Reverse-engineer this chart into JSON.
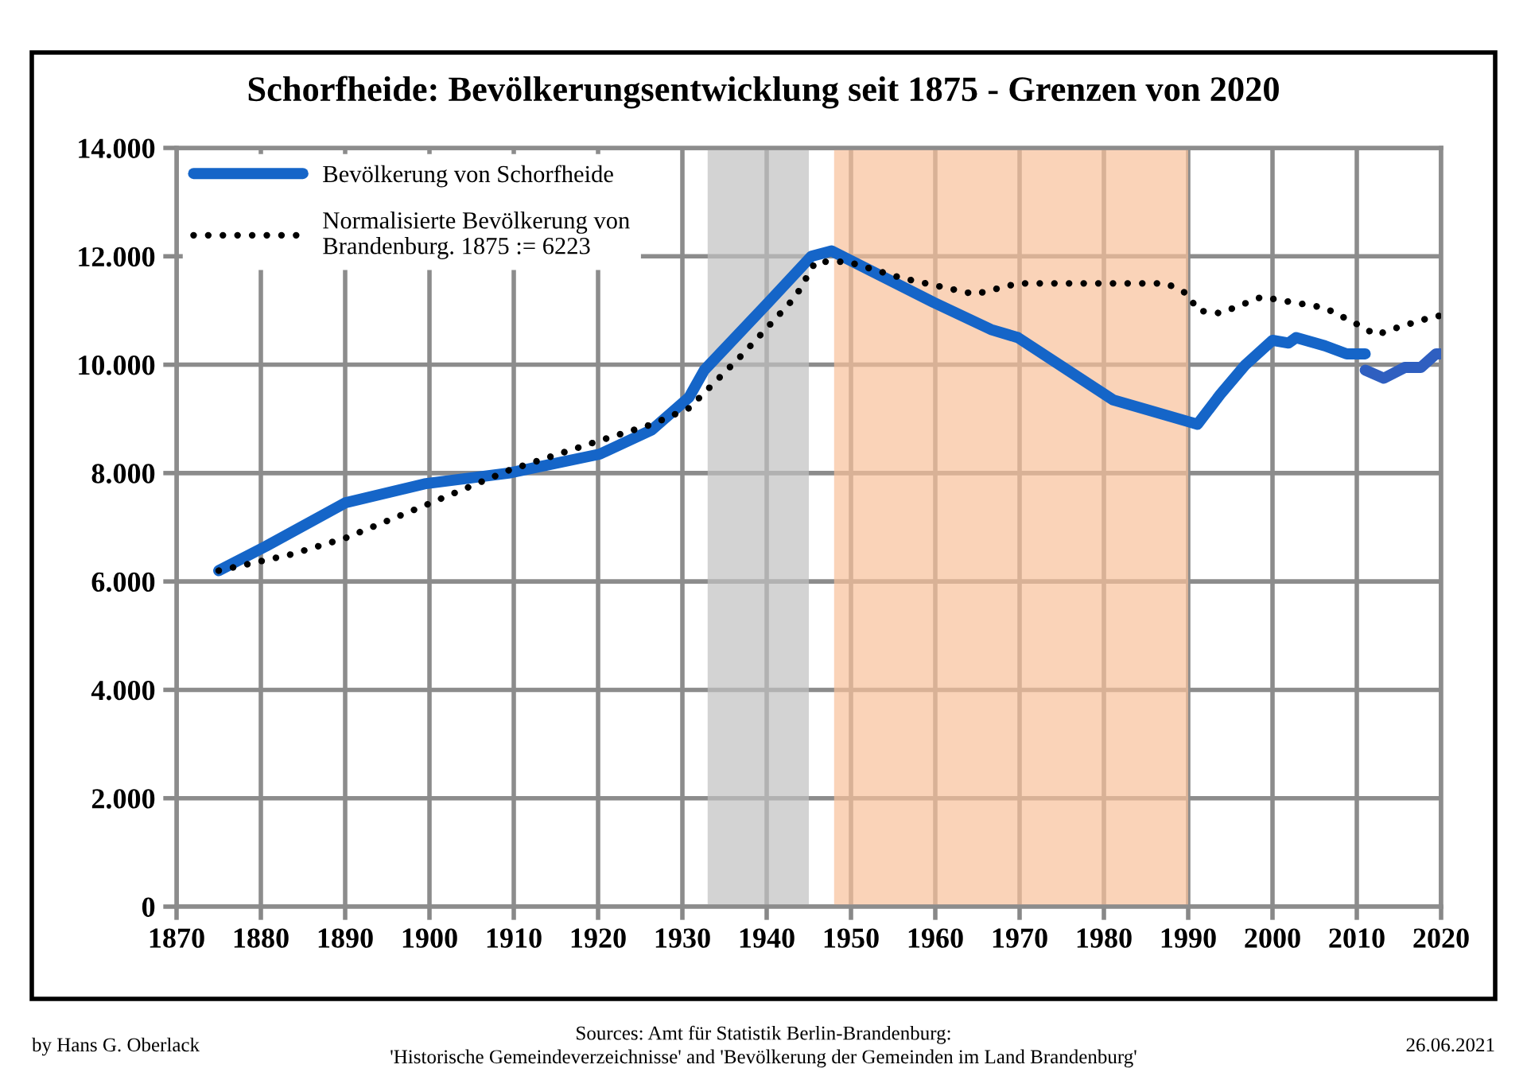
{
  "chart_data": {
    "type": "line",
    "title": "Schorfheide: Bevölkerungsentwicklung seit 1875 - Grenzen von 2020",
    "xlim": [
      1870,
      2020
    ],
    "xticks": [
      1870,
      1880,
      1890,
      1900,
      1910,
      1920,
      1930,
      1940,
      1950,
      1960,
      1970,
      1980,
      1990,
      2000,
      2010,
      2020
    ],
    "ylim": [
      0,
      14000
    ],
    "yticks": [
      {
        "value": 0,
        "label": "0"
      },
      {
        "value": 2000,
        "label": "2.000"
      },
      {
        "value": 4000,
        "label": "4.000"
      },
      {
        "value": 6000,
        "label": "6.000"
      },
      {
        "value": 8000,
        "label": "8.000"
      },
      {
        "value": 10000,
        "label": "10.000"
      },
      {
        "value": 12000,
        "label": "12.000"
      },
      {
        "value": 14000,
        "label": "14.000"
      }
    ],
    "grid": true,
    "legend": "top left",
    "series": [
      {
        "name": "Bevölkerung von Schorfheide",
        "color": "#1565c8",
        "line_style": "solid",
        "x": [
          1875,
          1880.6,
          1890,
          1899.4,
          1909.4,
          1920.2,
          1926.4,
          1930.8,
          1932.6,
          1940.2,
          1945.3,
          1947.7,
          1959.8,
          1966.6,
          1969.8,
          1981.1,
          1990,
          1991.1,
          1993.8,
          1996.8,
          2000,
          2001.9,
          2002.8,
          2006.2,
          2008.8,
          2011
        ],
        "values": [
          6200,
          6650,
          7450,
          7800,
          8000,
          8350,
          8800,
          9400,
          9900,
          11150,
          12000,
          12100,
          11150,
          10650,
          10500,
          9350,
          8950,
          8900,
          9450,
          10000,
          10450,
          10400,
          10500,
          10350,
          10200,
          10200
        ]
      },
      {
        "color": "#2f5fc0",
        "line_style": "solid",
        "x": [
          2011,
          2013.2,
          2015.7,
          2017.6,
          2019.4,
          2020
        ],
        "values": [
          9900,
          9750,
          9950,
          9950,
          10200,
          10200
        ]
      },
      {
        "name": "Normalisierte Bevölkerung von\nBrandenburg. 1875 := 6223",
        "color": "#000000",
        "line_style": "dotted",
        "x": [
          1875,
          1883.6,
          1890,
          1899.4,
          1909.4,
          1920.2,
          1926.4,
          1930.8,
          1937.2,
          1943.4,
          1945.8,
          1949.6,
          1956,
          1964.7,
          1969.8,
          1987.4,
          1990,
          1991.1,
          1993.8,
          1998.7,
          2006.2,
          2010,
          2012.3,
          2015.1,
          2019.4,
          2020
        ],
        "values": [
          6200,
          6500,
          6800,
          7400,
          8050,
          8600,
          8900,
          9200,
          10200,
          11250,
          11900,
          11900,
          11600,
          11300,
          11500,
          11500,
          11300,
          11000,
          10950,
          11250,
          11050,
          10750,
          10550,
          10700,
          10900,
          10900
        ]
      }
    ],
    "bands": [
      {
        "axis": "x",
        "from": 1933,
        "to": 1945,
        "color": "#c0c0c0"
      },
      {
        "axis": "x",
        "from": 1948,
        "to": 1990,
        "color": "#f8c09a"
      }
    ],
    "annotations": [
      "by Hans G. Oberlack",
      "Sources: Amt für Statistik Berlin-Brandenburg:\n'Historische Gemeindeverzeichnisse' and 'Bevölkerung der Gemeinden im Land Brandenburg'",
      "26.06.2021"
    ]
  }
}
